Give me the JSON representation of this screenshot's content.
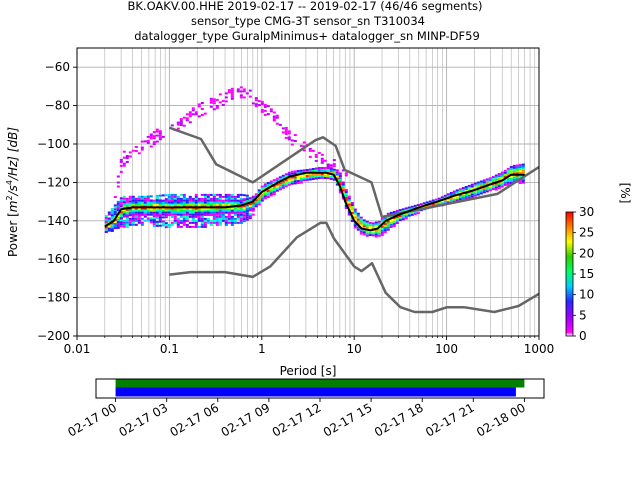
{
  "title_lines": [
    "BK.OAKV.00.HHE   2019-02-17 -- 2019-02-17  (46/46 segments)",
    "sensor_type CMG-3T sensor_sn T310034",
    "datalogger_type GuralpMinimus+ datalogger_sn MINP-DF59"
  ],
  "colors": {
    "nhnm_nlnm": "#666666",
    "mode": "#000000",
    "coverage_green": "#008000",
    "coverage_blue": "#0000ff",
    "grid": "#b0b0b0"
  },
  "chart_data": [
    {
      "type": "heatmap",
      "title": "BK.OAKV.00.HHE   2019-02-17 -- 2019-02-17  (46/46 segments)",
      "xlabel": "Period [s]",
      "ylabel": "Power [m²/s⁴/Hz] [dB]",
      "ylabel_parts": {
        "pre": "Power [",
        "m": "m",
        "exp2": "2",
        "mid": "/s",
        "exp4": "4",
        "post": "/Hz] [dB]"
      },
      "xscale": "log",
      "xlim": [
        0.01,
        1000
      ],
      "ylim": [
        -200,
        -50
      ],
      "xticks": [
        0.01,
        0.1,
        1,
        10,
        100,
        1000
      ],
      "xtick_labels": [
        "0.01",
        "0.1",
        "1",
        "10",
        "100",
        "1000"
      ],
      "yticks": [
        -200,
        -180,
        -160,
        -140,
        -120,
        -100,
        -80,
        -60
      ],
      "ytick_labels": [
        "−200",
        "−180",
        "−160",
        "−140",
        "−120",
        "−100",
        "−80",
        "−60"
      ],
      "grid": true,
      "colorbar": {
        "label": "[%]",
        "range": [
          0,
          30
        ],
        "ticks": [
          0,
          5,
          10,
          15,
          20,
          25,
          30
        ],
        "tick_labels": [
          "0",
          "5",
          "10",
          "15",
          "20",
          "25",
          "30"
        ]
      },
      "series": [
        {
          "name": "NHNM",
          "x": [
            0.1,
            0.22,
            0.32,
            0.8,
            3.8,
            4.6,
            6.3,
            7.9,
            15.4,
            20,
            354.8,
            1000
          ],
          "y": [
            -91.5,
            -97.4,
            -110.5,
            -120,
            -98,
            -96.5,
            -101,
            -113.5,
            -120,
            -138,
            -126,
            -112
          ]
        },
        {
          "name": "NLNM",
          "x": [
            0.1,
            0.17,
            0.4,
            0.8,
            1.24,
            2.4,
            4.3,
            5.0,
            6.0,
            10.0,
            12.0,
            15.6,
            21.9,
            31.6,
            45.0,
            70.0,
            101.0,
            154.0,
            328.0,
            600.0,
            1000
          ],
          "y": [
            -168,
            -166.7,
            -166.7,
            -169.2,
            -163.7,
            -148.6,
            -141.1,
            -141.1,
            -149,
            -163.8,
            -166.2,
            -162.1,
            -177.5,
            -185,
            -187.5,
            -187.5,
            -185,
            -185,
            -187.5,
            -184.4,
            -178
          ]
        },
        {
          "name": "mode",
          "x": [
            0.02,
            0.025,
            0.03,
            0.04,
            0.06,
            0.1,
            0.2,
            0.4,
            0.6,
            0.8,
            1.0,
            1.5,
            2.0,
            3.0,
            4.0,
            5.0,
            6.0,
            7.0,
            8.0,
            10.0,
            12.0,
            15.0,
            18.0,
            22.0,
            30.0,
            50.0,
            80.0,
            120.0,
            200.0,
            300.0,
            400.0,
            500.0,
            700.0
          ],
          "y": [
            -143,
            -140,
            -134,
            -133,
            -133,
            -133,
            -133,
            -133,
            -132,
            -130,
            -125,
            -120,
            -117,
            -115,
            -115,
            -115,
            -116,
            -122,
            -130,
            -140,
            -144,
            -145,
            -144,
            -140,
            -137,
            -133,
            -130,
            -127,
            -124,
            -121,
            -119,
            -116,
            -116
          ]
        },
        {
          "name": "main band",
          "x": [
            0.02,
            0.025,
            0.03,
            0.04,
            0.06,
            0.1,
            0.2,
            0.4,
            0.6,
            0.8,
            1.0,
            1.5,
            2.0,
            3.0,
            4.0,
            5.0,
            6.0,
            7.0,
            8.0,
            10.0,
            12.0,
            15.0,
            18.0,
            22.0,
            30.0,
            50.0,
            80.0,
            120.0,
            200.0,
            300.0,
            400.0,
            500.0,
            700.0
          ],
          "lo": [
            -146,
            -144,
            -138,
            -137,
            -137,
            -137,
            -137,
            -136,
            -136,
            -134,
            -129,
            -124,
            -121,
            -119,
            -118,
            -118,
            -119,
            -126,
            -134,
            -144,
            -147,
            -148,
            -148,
            -145,
            -140,
            -135,
            -132,
            -130,
            -127,
            -124,
            -122,
            -120,
            -120
          ],
          "hi": [
            -140,
            -135,
            -130,
            -129,
            -129,
            -129,
            -129,
            -129,
            -129,
            -127,
            -121,
            -117,
            -114,
            -113,
            -112,
            -112,
            -113,
            -117,
            -124,
            -134,
            -139,
            -141,
            -140,
            -136,
            -134,
            -131,
            -128,
            -124,
            -120,
            -117,
            -114,
            -111,
            -110
          ]
        },
        {
          "name": "lower scatter band",
          "x": [
            0.02,
            0.03,
            0.05,
            0.1,
            0.2,
            0.4,
            0.6,
            0.8
          ],
          "lo": [
            -146,
            -143,
            -142,
            -143,
            -143,
            -142,
            -141,
            -138
          ],
          "hi": [
            -137,
            -127,
            -127,
            -126,
            -126,
            -126,
            -126,
            -127
          ]
        },
        {
          "name": "upper scatter band",
          "x": [
            0.025,
            0.03,
            0.05,
            0.08,
            0.1,
            0.15,
            0.2,
            0.3,
            0.4,
            0.5,
            0.7,
            1.0,
            1.5,
            2.0,
            3.0,
            4.0,
            5.0,
            6.0,
            8.0
          ],
          "lo": [
            -130,
            -112,
            -104,
            -97,
            -94,
            -90,
            -86,
            -82,
            -78,
            -76,
            -76,
            -84,
            -92,
            -100,
            -106,
            -110,
            -113,
            -113,
            -120
          ],
          "hi": [
            -125,
            -104,
            -98,
            -90,
            -87,
            -83,
            -79,
            -75,
            -72,
            -70,
            -70,
            -77,
            -86,
            -93,
            -100,
            -104,
            -107,
            -108,
            -114
          ]
        }
      ]
    },
    {
      "type": "bar",
      "title": "",
      "xlabel": "",
      "ylabel": "",
      "tick_labels": [
        "02-17 00",
        "02-17 03",
        "02-17 06",
        "02-17 09",
        "02-17 12",
        "02-17 15",
        "02-17 18",
        "02-17 21",
        "02-18 00"
      ],
      "tick_hours": [
        0,
        3,
        6,
        9,
        12,
        15,
        18,
        21,
        24
      ],
      "xlim_hours": [
        -1.15,
        25.15
      ],
      "series": [
        {
          "name": "coverage-green",
          "start_hour": 0,
          "end_hour": 24.0
        },
        {
          "name": "coverage-blue",
          "start_hour": 0,
          "end_hour": 23.5
        }
      ]
    }
  ]
}
